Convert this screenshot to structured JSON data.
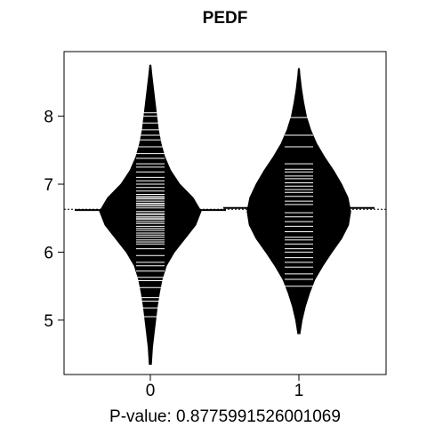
{
  "chart_data": {
    "type": "beanplot",
    "title": "PEDF",
    "xlabel": "P-value: 0.8775991526001069",
    "categories": [
      "0",
      "1"
    ],
    "y_ticks": [
      "5",
      "6",
      "7",
      "8"
    ],
    "ylim": [
      4.2,
      8.95
    ],
    "overall_mean": 6.63,
    "grid": false,
    "legend": "none",
    "groups": [
      {
        "name": "0",
        "mean": 6.62,
        "range": [
          4.35,
          8.75
        ],
        "density": [
          [
            4.35,
            0.02
          ],
          [
            4.6,
            0.04
          ],
          [
            4.8,
            0.07
          ],
          [
            5.0,
            0.1
          ],
          [
            5.2,
            0.13
          ],
          [
            5.4,
            0.17
          ],
          [
            5.6,
            0.22
          ],
          [
            5.8,
            0.3
          ],
          [
            6.0,
            0.45
          ],
          [
            6.2,
            0.65
          ],
          [
            6.4,
            0.85
          ],
          [
            6.6,
            0.95
          ],
          [
            6.8,
            0.8
          ],
          [
            7.0,
            0.55
          ],
          [
            7.2,
            0.38
          ],
          [
            7.4,
            0.27
          ],
          [
            7.6,
            0.2
          ],
          [
            7.8,
            0.15
          ],
          [
            8.0,
            0.12
          ],
          [
            8.2,
            0.09
          ],
          [
            8.4,
            0.06
          ],
          [
            8.6,
            0.03
          ],
          [
            8.75,
            0.01
          ]
        ],
        "observations": [
          5.05,
          5.18,
          5.28,
          5.33,
          5.48,
          5.58,
          5.63,
          5.72,
          5.8,
          5.85,
          5.95,
          6.05,
          6.12,
          6.15,
          6.18,
          6.22,
          6.25,
          6.28,
          6.32,
          6.35,
          6.38,
          6.42,
          6.45,
          6.48,
          6.5,
          6.52,
          6.55,
          6.57,
          6.6,
          6.62,
          6.65,
          6.68,
          6.7,
          6.72,
          6.75,
          6.78,
          6.8,
          6.82,
          6.85,
          6.9,
          6.95,
          7.0,
          7.05,
          7.1,
          7.18,
          7.25,
          7.3,
          7.38,
          7.45,
          7.55,
          7.65,
          7.72,
          7.8,
          7.9,
          8.0,
          8.05
        ]
      },
      {
        "name": "1",
        "mean": 6.65,
        "range": [
          4.8,
          8.7
        ],
        "density": [
          [
            4.8,
            0.02
          ],
          [
            5.0,
            0.06
          ],
          [
            5.2,
            0.12
          ],
          [
            5.4,
            0.2
          ],
          [
            5.6,
            0.3
          ],
          [
            5.8,
            0.45
          ],
          [
            6.0,
            0.62
          ],
          [
            6.2,
            0.8
          ],
          [
            6.4,
            0.93
          ],
          [
            6.6,
            0.97
          ],
          [
            6.8,
            0.92
          ],
          [
            7.0,
            0.8
          ],
          [
            7.2,
            0.65
          ],
          [
            7.4,
            0.48
          ],
          [
            7.6,
            0.33
          ],
          [
            7.8,
            0.22
          ],
          [
            8.0,
            0.14
          ],
          [
            8.2,
            0.09
          ],
          [
            8.4,
            0.05
          ],
          [
            8.6,
            0.02
          ],
          [
            8.7,
            0.01
          ]
        ],
        "observations": [
          5.5,
          5.6,
          5.68,
          5.78,
          5.85,
          5.92,
          6.0,
          6.05,
          6.12,
          6.18,
          6.22,
          6.3,
          6.38,
          6.45,
          6.52,
          6.58,
          6.65,
          6.7,
          6.75,
          6.82,
          6.88,
          6.92,
          6.97,
          7.02,
          7.08,
          7.12,
          7.18,
          7.22,
          7.3,
          7.55,
          7.72,
          7.98
        ]
      }
    ]
  }
}
